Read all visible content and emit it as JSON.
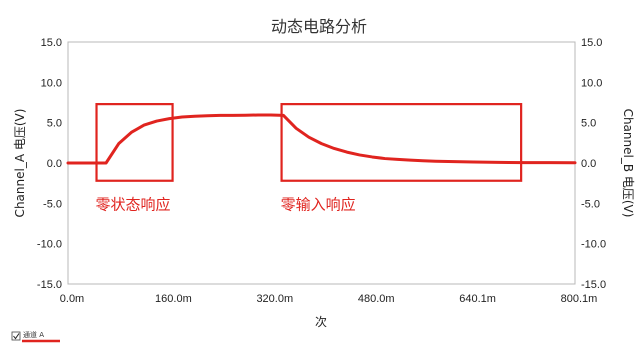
{
  "chart_data": {
    "type": "line",
    "title": "动态电路分析",
    "xlabel": "次",
    "ylabel_left": "Channel_A 电压(V)",
    "ylabel_right": "Channel_B 电压(V)",
    "xlim": [
      0,
      0.8
    ],
    "ylim": [
      -15,
      15
    ],
    "x_ticks": [
      "0.0m",
      "160.0m",
      "320.0m",
      "480.0m",
      "640.1m",
      "800.1m"
    ],
    "y_ticks": [
      "15.0",
      "10.0",
      "5.0",
      "0.0",
      "-5.0",
      "-10.0",
      "-15.0"
    ],
    "grid": false,
    "legend_position": "bottom-left",
    "series": [
      {
        "name": "通道 A",
        "color": "#e0241f",
        "x": [
          0.0,
          0.06,
          0.08,
          0.1,
          0.12,
          0.14,
          0.16,
          0.18,
          0.2,
          0.22,
          0.24,
          0.26,
          0.28,
          0.3,
          0.32,
          0.34,
          0.36,
          0.38,
          0.4,
          0.42,
          0.44,
          0.46,
          0.48,
          0.5,
          0.52,
          0.54,
          0.56,
          0.58,
          0.6,
          0.64,
          0.68,
          0.72,
          0.76,
          0.8
        ],
        "y": [
          0.0,
          0.0,
          2.4,
          3.8,
          4.7,
          5.2,
          5.5,
          5.7,
          5.8,
          5.85,
          5.9,
          5.9,
          5.92,
          5.95,
          5.95,
          5.9,
          4.3,
          3.2,
          2.4,
          1.8,
          1.35,
          1.0,
          0.75,
          0.55,
          0.45,
          0.35,
          0.28,
          0.22,
          0.18,
          0.12,
          0.08,
          0.05,
          0.04,
          0.03
        ]
      }
    ],
    "annotations": [
      {
        "text": "零状态响应",
        "box_x": [
          0.045,
          0.165
        ],
        "box_y": [
          -2.2,
          7.3
        ]
      },
      {
        "text": "零输入响应",
        "box_x": [
          0.337,
          0.715
        ],
        "box_y": [
          -2.2,
          7.3
        ]
      }
    ]
  },
  "legend": {
    "label": "通道 A",
    "checkbox_icon": "checkbox-icon",
    "color": "#e0241f"
  }
}
